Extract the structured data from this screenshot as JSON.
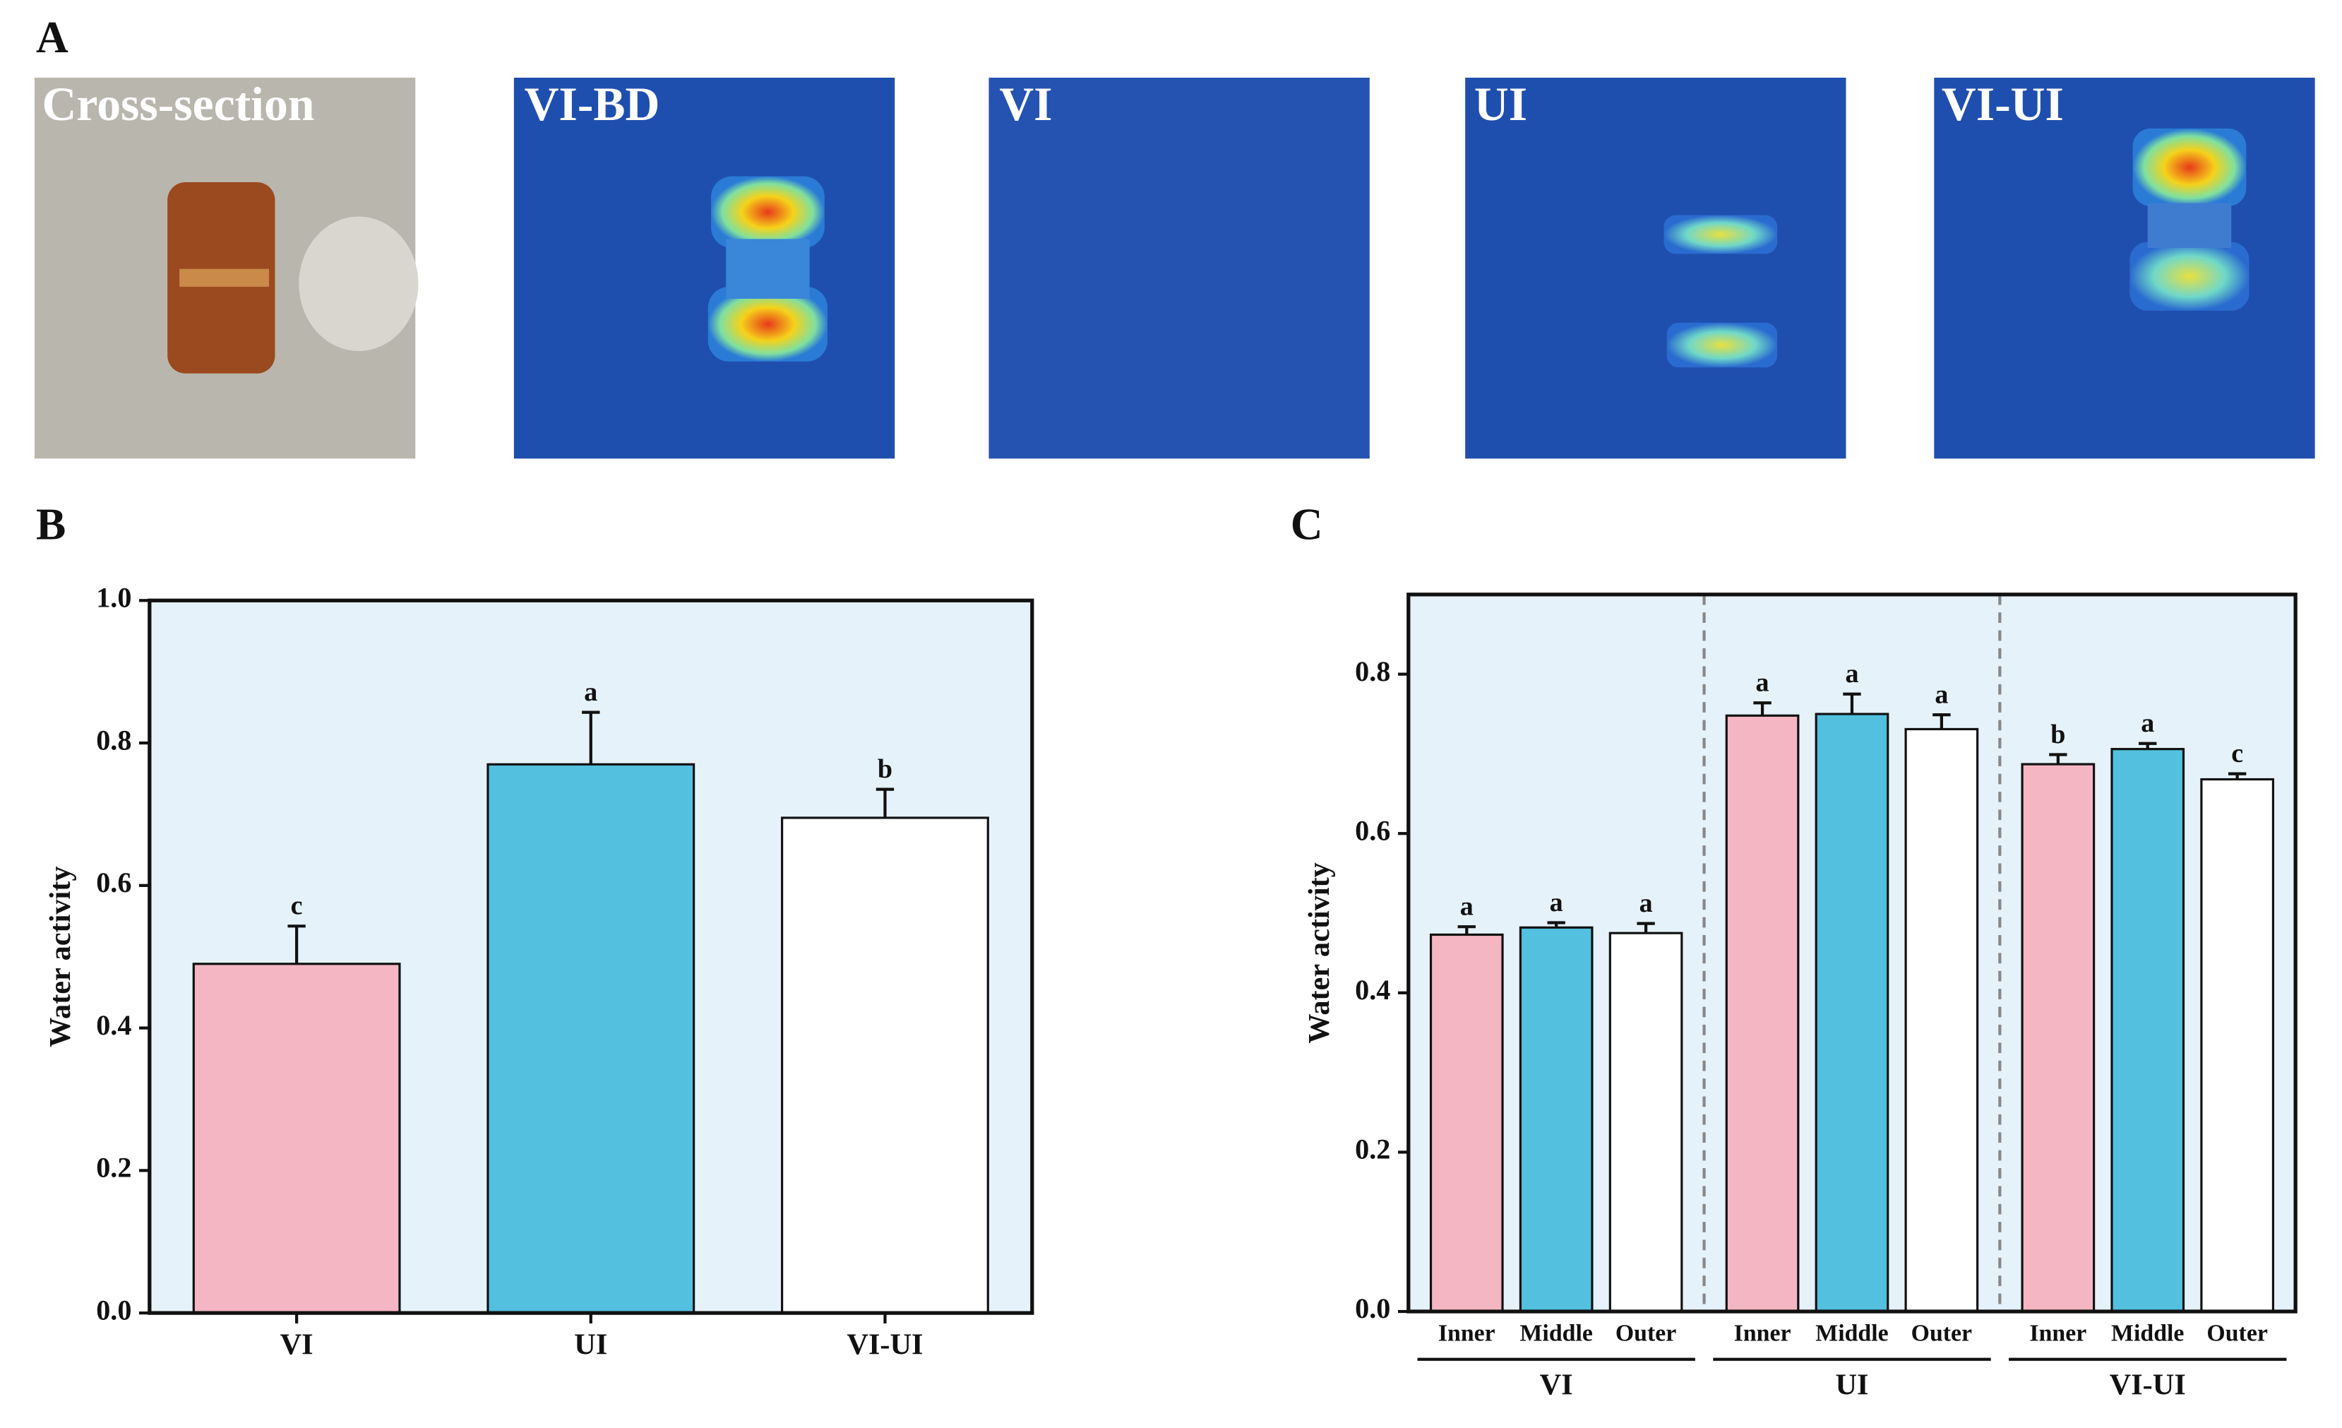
{
  "panel_a": {
    "label": "A",
    "images": [
      {
        "label": "Cross-section"
      },
      {
        "label": "VI-BD"
      },
      {
        "label": "VI"
      },
      {
        "label": "UI"
      },
      {
        "label": "VI-UI"
      }
    ]
  },
  "chart_data": [
    {
      "type": "bar",
      "panel_label": "B",
      "y_label": "Water activity",
      "categories": [
        "VI",
        "UI",
        "VI-UI"
      ],
      "values": [
        0.49,
        0.77,
        0.695
      ],
      "errors": [
        0.053,
        0.073,
        0.04
      ],
      "annotations": [
        "c",
        "a",
        "b"
      ],
      "colors": [
        "#f4b6c2",
        "#52c0de",
        "#ffffff"
      ],
      "ylim": [
        0,
        1
      ],
      "yticks": [
        {
          "value": 0,
          "label": "0.0"
        },
        0.2,
        0.4,
        0.6,
        0.8,
        {
          "value": 1,
          "label": "1.0"
        }
      ]
    },
    {
      "type": "bar",
      "panel_label": "C",
      "y_label": "Water activity",
      "categories": [
        "VI",
        "UI",
        "VI-UI"
      ],
      "series": [
        {
          "name": "Inner",
          "color": "#f4b6c2",
          "values": [
            0.473,
            0.748,
            0.687
          ],
          "errors": [
            0.01,
            0.016,
            0.012
          ],
          "annotations": [
            "a",
            "a",
            "b"
          ]
        },
        {
          "name": "Middle",
          "color": "#52c0de",
          "values": [
            0.482,
            0.75,
            0.706
          ],
          "errors": [
            0.006,
            0.025,
            0.007
          ],
          "annotations": [
            "a",
            "a",
            "a"
          ]
        },
        {
          "name": "Outer",
          "color": "#ffffff",
          "values": [
            0.475,
            0.731,
            0.668
          ],
          "errors": [
            0.012,
            0.018,
            0.007
          ],
          "annotations": [
            "a",
            "a",
            "c"
          ]
        }
      ],
      "ylim": [
        0,
        0.9
      ],
      "yticks": [
        {
          "value": 0,
          "label": "0.0"
        },
        0.2,
        0.4,
        0.6,
        0.8
      ]
    }
  ]
}
